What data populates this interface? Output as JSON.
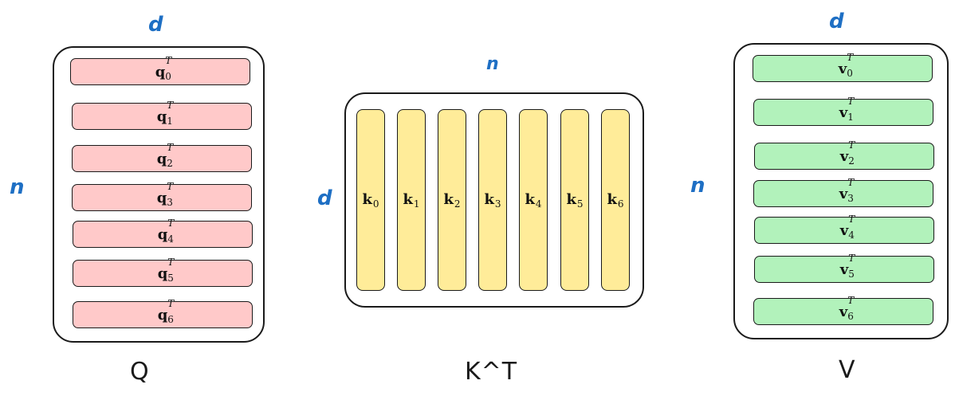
{
  "q_block": {
    "caption": "Q",
    "top_dim": "d",
    "side_dim": "n",
    "rows": [
      {
        "base": "q",
        "sub": "0",
        "sup": "T"
      },
      {
        "base": "q",
        "sub": "1",
        "sup": "T"
      },
      {
        "base": "q",
        "sub": "2",
        "sup": "T"
      },
      {
        "base": "q",
        "sub": "3",
        "sup": "T"
      },
      {
        "base": "q",
        "sub": "4",
        "sup": "T"
      },
      {
        "base": "q",
        "sub": "5",
        "sup": "T"
      },
      {
        "base": "q",
        "sub": "6",
        "sup": "T"
      }
    ]
  },
  "kt_block": {
    "caption": "K^T",
    "top_dim": "n",
    "side_dim": "d",
    "columns": [
      {
        "base": "k",
        "sub": "0"
      },
      {
        "base": "k",
        "sub": "1"
      },
      {
        "base": "k",
        "sub": "2"
      },
      {
        "base": "k",
        "sub": "3"
      },
      {
        "base": "k",
        "sub": "4"
      },
      {
        "base": "k",
        "sub": "5"
      },
      {
        "base": "k",
        "sub": "6"
      }
    ]
  },
  "v_block": {
    "caption": "V",
    "top_dim": "d",
    "side_dim": "n",
    "rows": [
      {
        "base": "v",
        "sub": "0",
        "sup": "T"
      },
      {
        "base": "v",
        "sub": "1",
        "sup": "T"
      },
      {
        "base": "v",
        "sub": "2",
        "sup": "T"
      },
      {
        "base": "v",
        "sub": "3",
        "sup": "T"
      },
      {
        "base": "v",
        "sub": "4",
        "sup": "T"
      },
      {
        "base": "v",
        "sub": "5",
        "sup": "T"
      },
      {
        "base": "v",
        "sub": "6",
        "sup": "T"
      }
    ]
  },
  "colors": {
    "dimension_label": "#1e6fc4",
    "q_fill": "#ffc9c9",
    "k_fill": "#ffec99",
    "v_fill": "#b2f2bb",
    "stroke": "#1a1a1a"
  }
}
